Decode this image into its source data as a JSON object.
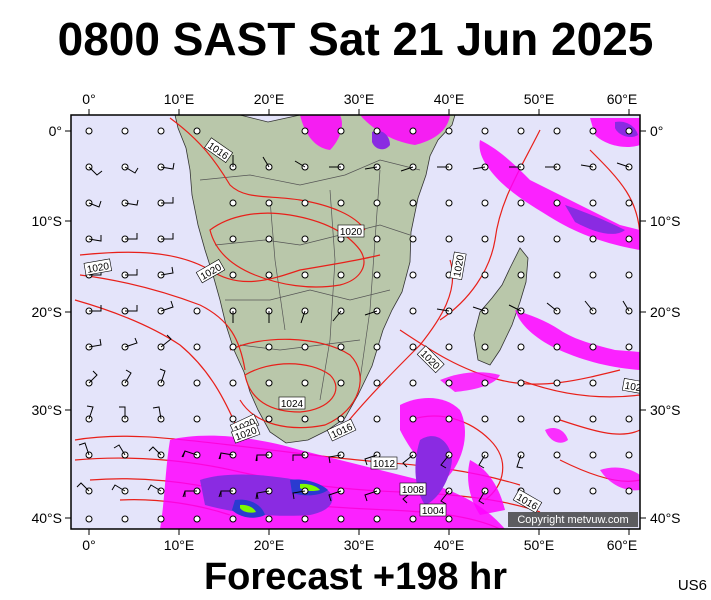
{
  "title": "0800 SAST Sat 21 Jun 2025",
  "footer": "Forecast +198 hr",
  "map_code": "US6",
  "copyright": "Copyright metvuw.com",
  "longitude_labels": [
    "0°",
    "10°E",
    "20°E",
    "30°E",
    "40°E",
    "50°E",
    "60°E"
  ],
  "latitude_labels": [
    "0°",
    "10°S",
    "20°S",
    "30°S",
    "40°S"
  ],
  "isobar_labels": [
    "1016",
    "1020",
    "1020",
    "1020",
    "1020",
    "1020",
    "1020",
    "1024",
    "1020",
    "1016",
    "1012",
    "1008",
    "1004",
    "1016",
    "102"
  ],
  "colors": {
    "ocean": "#e4e4fa",
    "land": "#b9c7aa",
    "isobar": "#e8201a",
    "border": "#555555",
    "precip_light": "#ff00ff",
    "precip_mid": "#8a2be2",
    "precip_heavy": "#2a3bd0",
    "precip_max": "#7cfc00"
  }
}
